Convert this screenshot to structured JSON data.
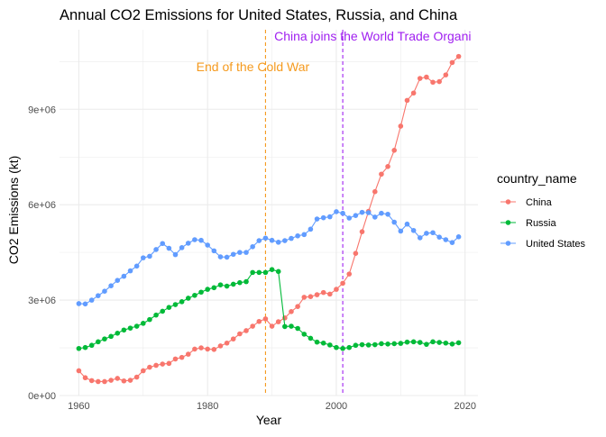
{
  "chart_data": {
    "type": "line",
    "title": "Annual CO2 Emissions for United States, Russia, and China",
    "xlabel": "Year",
    "ylabel": "CO2 Emissions (kt)",
    "xlim": [
      1957,
      2022
    ],
    "ylim": [
      0,
      11500000
    ],
    "x_ticks": [
      1960,
      1980,
      2000,
      2020
    ],
    "x_tick_labels": [
      "1960",
      "1980",
      "2000",
      "2020"
    ],
    "y_ticks": [
      0,
      3000000,
      6000000,
      9000000
    ],
    "y_tick_labels": [
      "0e+00",
      "3e+06",
      "6e+06",
      "9e+06"
    ],
    "grid": true,
    "legend": {
      "title": "country_name",
      "placement": "right"
    },
    "annotations": [
      {
        "x": 1989,
        "text": "End of the Cold War",
        "color": "#f59a1e"
      },
      {
        "x": 2001,
        "text": "China joins the World Trade Organi",
        "color": "#a020f0"
      }
    ],
    "series": [
      {
        "name": "China",
        "color": "#f8766d",
        "x": [
          1960,
          1961,
          1962,
          1963,
          1964,
          1965,
          1966,
          1967,
          1968,
          1969,
          1970,
          1971,
          1972,
          1973,
          1974,
          1975,
          1976,
          1977,
          1978,
          1979,
          1980,
          1981,
          1982,
          1983,
          1984,
          1985,
          1986,
          1987,
          1988,
          1989,
          1990,
          1991,
          1992,
          1993,
          1994,
          1995,
          1996,
          1997,
          1998,
          1999,
          2000,
          2001,
          2002,
          2003,
          2004,
          2005,
          2006,
          2007,
          2008,
          2009,
          2010,
          2011,
          2012,
          2013,
          2014,
          2015,
          2016,
          2017,
          2018,
          2019
        ],
        "y": [
          780000,
          560000,
          470000,
          440000,
          440000,
          480000,
          540000,
          460000,
          480000,
          580000,
          780000,
          890000,
          950000,
          990000,
          1010000,
          1150000,
          1200000,
          1300000,
          1460000,
          1500000,
          1460000,
          1450000,
          1560000,
          1650000,
          1780000,
          1940000,
          2040000,
          2180000,
          2330000,
          2410000,
          2180000,
          2320000,
          2440000,
          2640000,
          2800000,
          3090000,
          3110000,
          3170000,
          3240000,
          3190000,
          3340000,
          3530000,
          3820000,
          4470000,
          5150000,
          5790000,
          6410000,
          6960000,
          7200000,
          7710000,
          8470000,
          9280000,
          9510000,
          9970000,
          10010000,
          9850000,
          9870000,
          10080000,
          10470000,
          10660000
        ]
      },
      {
        "name": "Russia",
        "color": "#00ba38",
        "x": [
          1960,
          1961,
          1962,
          1963,
          1964,
          1965,
          1966,
          1967,
          1968,
          1969,
          1970,
          1971,
          1972,
          1973,
          1974,
          1975,
          1976,
          1977,
          1978,
          1979,
          1980,
          1981,
          1982,
          1983,
          1984,
          1985,
          1986,
          1987,
          1988,
          1989,
          1990,
          1991,
          1992,
          1993,
          1994,
          1995,
          1996,
          1997,
          1998,
          1999,
          2000,
          2001,
          2002,
          2003,
          2004,
          2005,
          2006,
          2007,
          2008,
          2009,
          2010,
          2011,
          2012,
          2013,
          2014,
          2015,
          2016,
          2017,
          2018,
          2019
        ],
        "y": [
          1480000,
          1510000,
          1580000,
          1690000,
          1780000,
          1860000,
          1960000,
          2060000,
          2120000,
          2180000,
          2270000,
          2390000,
          2530000,
          2650000,
          2770000,
          2860000,
          2950000,
          3060000,
          3150000,
          3250000,
          3340000,
          3390000,
          3480000,
          3440000,
          3500000,
          3550000,
          3580000,
          3870000,
          3870000,
          3870000,
          3960000,
          3900000,
          2170000,
          2180000,
          2110000,
          1930000,
          1800000,
          1680000,
          1650000,
          1590000,
          1510000,
          1480000,
          1510000,
          1580000,
          1600000,
          1590000,
          1600000,
          1630000,
          1620000,
          1630000,
          1640000,
          1680000,
          1690000,
          1670000,
          1610000,
          1690000,
          1670000,
          1650000,
          1620000,
          1660000
        ]
      },
      {
        "name": "United States",
        "color": "#619cff",
        "x": [
          1960,
          1961,
          1962,
          1963,
          1964,
          1965,
          1966,
          1967,
          1968,
          1969,
          1970,
          1971,
          1972,
          1973,
          1974,
          1975,
          1976,
          1977,
          1978,
          1979,
          1980,
          1981,
          1982,
          1983,
          1984,
          1985,
          1986,
          1987,
          1988,
          1989,
          1990,
          1991,
          1992,
          1993,
          1994,
          1995,
          1996,
          1997,
          1998,
          1999,
          2000,
          2001,
          2002,
          2003,
          2004,
          2005,
          2006,
          2007,
          2008,
          2009,
          2010,
          2011,
          2012,
          2013,
          2014,
          2015,
          2016,
          2017,
          2018,
          2019
        ],
        "y": [
          2890000,
          2880000,
          3000000,
          3140000,
          3280000,
          3450000,
          3620000,
          3750000,
          3920000,
          4070000,
          4330000,
          4380000,
          4590000,
          4780000,
          4630000,
          4430000,
          4650000,
          4790000,
          4900000,
          4880000,
          4730000,
          4550000,
          4360000,
          4350000,
          4440000,
          4500000,
          4500000,
          4680000,
          4870000,
          4950000,
          4880000,
          4820000,
          4870000,
          4940000,
          5020000,
          5060000,
          5230000,
          5550000,
          5590000,
          5620000,
          5780000,
          5730000,
          5580000,
          5660000,
          5760000,
          5750000,
          5610000,
          5730000,
          5700000,
          5450000,
          5170000,
          5390000,
          5190000,
          4960000,
          5100000,
          5120000,
          4980000,
          4900000,
          4810000,
          4990000
        ]
      }
    ]
  }
}
